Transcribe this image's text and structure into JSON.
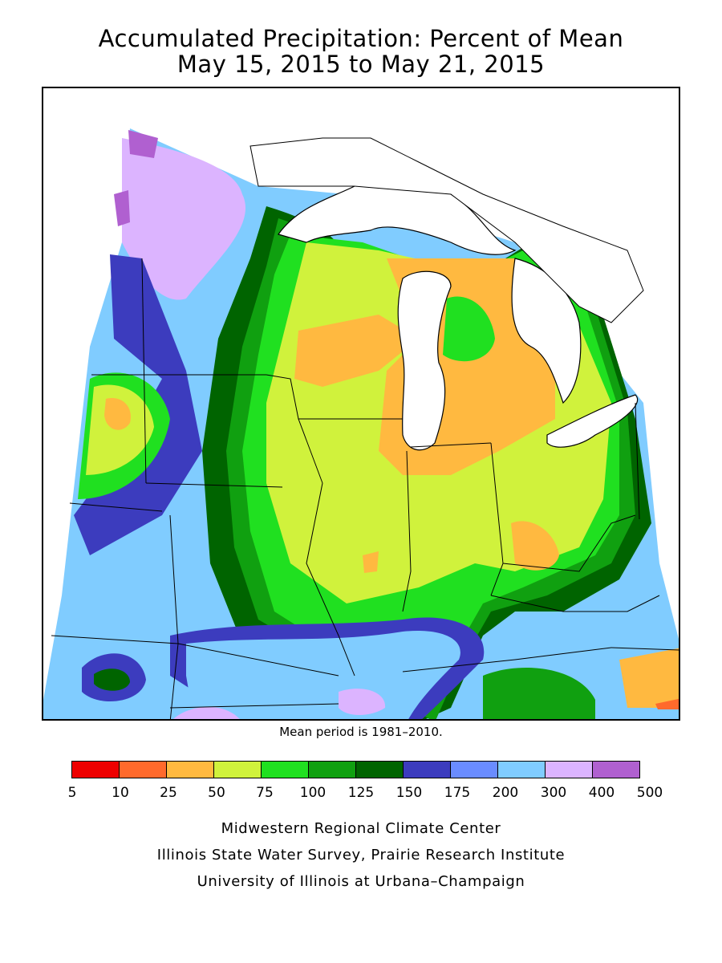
{
  "title": {
    "line1": "Accumulated Precipitation: Percent of Mean",
    "line2": "May 15, 2015 to May 21, 2015"
  },
  "map": {
    "lake_color": "#ffffff",
    "border_color": "#000000"
  },
  "mean_period": "Mean period is 1981–2010.",
  "legend": {
    "colors": [
      "#ee0000",
      "#ff6a2c",
      "#ffb940",
      "#d0f23c",
      "#20e020",
      "#10a010",
      "#006400",
      "#3c3cbe",
      "#6a8cff",
      "#80ccff",
      "#dcb4ff",
      "#b060d0"
    ],
    "ticks": [
      "5",
      "10",
      "25",
      "50",
      "75",
      "100",
      "125",
      "150",
      "175",
      "200",
      "300",
      "400",
      "500"
    ]
  },
  "credits": {
    "line1": "Midwestern Regional Climate Center",
    "line2": "Illinois State Water Survey, Prairie Research Institute",
    "line3": "University of Illinois at Urbana–Champaign"
  }
}
